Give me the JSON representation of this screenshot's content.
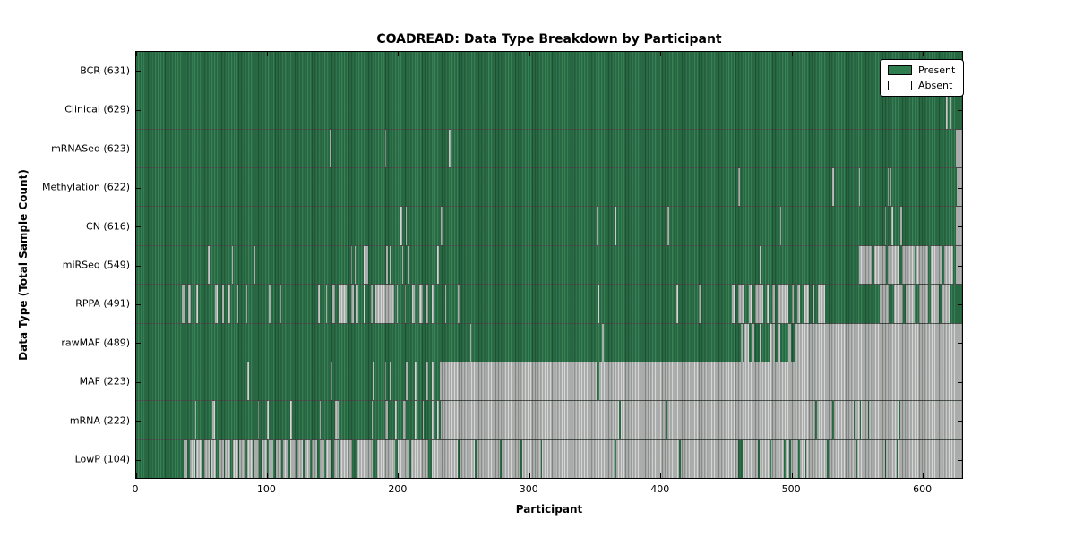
{
  "title": "COADREAD: Data Type Breakdown by Participant",
  "x_axis_label": "Participant",
  "y_axis_label": "Data Type (Total Sample Count)",
  "legend": {
    "present_label": "Present",
    "absent_label": "Absent"
  },
  "colors": {
    "present": "#2e7d4f",
    "absent": "#d4d4d4",
    "legend_absent_swatch": "#ffffff",
    "border": "#000000"
  },
  "chart_data": {
    "type": "heatmap",
    "title": "COADREAD: Data Type Breakdown by Participant",
    "xlabel": "Participant",
    "ylabel": "Data Type (Total Sample Count)",
    "xlim": [
      0,
      631
    ],
    "x_ticks": [
      0,
      100,
      200,
      300,
      400,
      500,
      600
    ],
    "n_participants": 631,
    "legend_position": "upper right",
    "states": [
      "Present",
      "Absent"
    ],
    "rows": [
      {
        "label": "BCR (631)",
        "name": "BCR",
        "present_count": 631,
        "present_ranges": [
          [
            0,
            630
          ]
        ]
      },
      {
        "label": "Clinical (629)",
        "name": "Clinical",
        "present_count": 629,
        "present_ranges": [
          [
            0,
            618
          ],
          [
            620,
            621
          ],
          [
            623,
            630
          ]
        ]
      },
      {
        "label": "mRNASeq (623)",
        "name": "mRNASeq",
        "present_count": 623,
        "present_ranges": [
          [
            0,
            147
          ],
          [
            149,
            189
          ],
          [
            191,
            238
          ],
          [
            240,
            625
          ]
        ]
      },
      {
        "label": "Methylation (622)",
        "name": "Methylation",
        "present_count": 622,
        "present_ranges": [
          [
            0,
            459
          ],
          [
            461,
            531
          ],
          [
            533,
            551
          ],
          [
            553,
            573
          ],
          [
            575,
            575
          ],
          [
            577,
            626
          ]
        ]
      },
      {
        "label": "CN (616)",
        "name": "CN",
        "present_count": 616,
        "present_ranges": [
          [
            0,
            201
          ],
          [
            203,
            205
          ],
          [
            207,
            232
          ],
          [
            234,
            351
          ],
          [
            353,
            365
          ],
          [
            367,
            405
          ],
          [
            407,
            491
          ],
          [
            493,
            571
          ],
          [
            573,
            576
          ],
          [
            578,
            583
          ],
          [
            585,
            625
          ]
        ]
      },
      {
        "label": "miRSeq (549)",
        "name": "miRSeq",
        "present_count": 549,
        "present_ranges": [
          [
            0,
            54
          ],
          [
            56,
            72
          ],
          [
            74,
            89
          ],
          [
            91,
            163
          ],
          [
            165,
            166
          ],
          [
            168,
            173
          ],
          [
            177,
            190
          ],
          [
            192,
            193
          ],
          [
            195,
            202
          ],
          [
            204,
            207
          ],
          [
            209,
            229
          ],
          [
            231,
            475
          ],
          [
            477,
            551
          ],
          [
            562,
            563
          ],
          [
            573,
            573
          ],
          [
            583,
            584
          ],
          [
            595,
            595
          ],
          [
            605,
            606
          ],
          [
            616,
            616
          ],
          [
            624,
            625
          ]
        ]
      },
      {
        "label": "RPPA (491)",
        "name": "RPPA",
        "present_count": 491,
        "present_ranges": [
          [
            0,
            34
          ],
          [
            37,
            39
          ],
          [
            42,
            45
          ],
          [
            47,
            59
          ],
          [
            62,
            65
          ],
          [
            67,
            69
          ],
          [
            72,
            76
          ],
          [
            78,
            83
          ],
          [
            85,
            100
          ],
          [
            103,
            109
          ],
          [
            111,
            138
          ],
          [
            140,
            144
          ],
          [
            146,
            149
          ],
          [
            152,
            154
          ],
          [
            161,
            163
          ],
          [
            166,
            167
          ],
          [
            170,
            173
          ],
          [
            175,
            178
          ],
          [
            181,
            182
          ],
          [
            197,
            198
          ],
          [
            200,
            204
          ],
          [
            206,
            210
          ],
          [
            213,
            215
          ],
          [
            219,
            221
          ],
          [
            223,
            225
          ],
          [
            228,
            235
          ],
          [
            237,
            245
          ],
          [
            247,
            352
          ],
          [
            354,
            412
          ],
          [
            414,
            429
          ],
          [
            431,
            454
          ],
          [
            457,
            459
          ],
          [
            465,
            467
          ],
          [
            470,
            472
          ],
          [
            479,
            481
          ],
          [
            483,
            485
          ],
          [
            488,
            490
          ],
          [
            498,
            500
          ],
          [
            502,
            504
          ],
          [
            507,
            509
          ],
          [
            514,
            516
          ],
          [
            518,
            520
          ],
          [
            526,
            567
          ],
          [
            575,
            578
          ],
          [
            586,
            587
          ],
          [
            595,
            597
          ],
          [
            605,
            606
          ],
          [
            613,
            614
          ],
          [
            622,
            630
          ]
        ]
      },
      {
        "label": "rawMAF (489)",
        "name": "rawMAF",
        "present_count": 489,
        "present_ranges": [
          [
            0,
            254
          ],
          [
            256,
            355
          ],
          [
            357,
            461
          ],
          [
            463,
            464
          ],
          [
            468,
            470
          ],
          [
            472,
            475
          ],
          [
            477,
            483
          ],
          [
            488,
            490
          ],
          [
            492,
            497
          ],
          [
            500,
            503
          ]
        ]
      },
      {
        "label": "MAF (223)",
        "name": "MAF",
        "present_count": 223,
        "present_ranges": [
          [
            0,
            84
          ],
          [
            86,
            148
          ],
          [
            150,
            180
          ],
          [
            182,
            189
          ],
          [
            191,
            193
          ],
          [
            195,
            205
          ],
          [
            208,
            212
          ],
          [
            214,
            221
          ],
          [
            223,
            225
          ],
          [
            228,
            231
          ],
          [
            352,
            353
          ]
        ]
      },
      {
        "label": "mRNA (222)",
        "name": "mRNA",
        "present_count": 222,
        "present_ranges": [
          [
            0,
            44
          ],
          [
            46,
            57
          ],
          [
            60,
            92
          ],
          [
            94,
            99
          ],
          [
            101,
            117
          ],
          [
            119,
            139
          ],
          [
            141,
            151
          ],
          [
            155,
            179
          ],
          [
            181,
            189
          ],
          [
            192,
            197
          ],
          [
            199,
            203
          ],
          [
            206,
            212
          ],
          [
            214,
            218
          ],
          [
            220,
            225
          ],
          [
            227,
            229
          ],
          [
            231,
            232
          ],
          [
            369,
            369
          ],
          [
            405,
            405
          ],
          [
            490,
            490
          ],
          [
            519,
            519
          ],
          [
            532,
            532
          ],
          [
            548,
            548
          ],
          [
            553,
            553
          ],
          [
            559,
            559
          ],
          [
            583,
            583
          ]
        ]
      },
      {
        "label": "LowP (104)",
        "name": "LowP",
        "present_count": 104,
        "present_ranges": [
          [
            0,
            35
          ],
          [
            39,
            40
          ],
          [
            45,
            45
          ],
          [
            50,
            51
          ],
          [
            56,
            56
          ],
          [
            61,
            62
          ],
          [
            67,
            67
          ],
          [
            72,
            73
          ],
          [
            78,
            78
          ],
          [
            83,
            84
          ],
          [
            89,
            89
          ],
          [
            94,
            95
          ],
          [
            100,
            100
          ],
          [
            105,
            106
          ],
          [
            111,
            111
          ],
          [
            116,
            117
          ],
          [
            122,
            122
          ],
          [
            127,
            128
          ],
          [
            133,
            133
          ],
          [
            138,
            139
          ],
          [
            144,
            144
          ],
          [
            149,
            150
          ],
          [
            155,
            155
          ],
          [
            165,
            168
          ],
          [
            181,
            183
          ],
          [
            198,
            199
          ],
          [
            209,
            209
          ],
          [
            223,
            225
          ],
          [
            246,
            246
          ],
          [
            259,
            260
          ],
          [
            278,
            278
          ],
          [
            293,
            294
          ],
          [
            309,
            309
          ],
          [
            366,
            366
          ],
          [
            415,
            415
          ],
          [
            460,
            462
          ],
          [
            475,
            475
          ],
          [
            484,
            484
          ],
          [
            495,
            495
          ],
          [
            499,
            499
          ],
          [
            506,
            506
          ],
          [
            511,
            511
          ],
          [
            528,
            528
          ],
          [
            550,
            550
          ],
          [
            572,
            572
          ],
          [
            581,
            581
          ]
        ]
      }
    ]
  }
}
